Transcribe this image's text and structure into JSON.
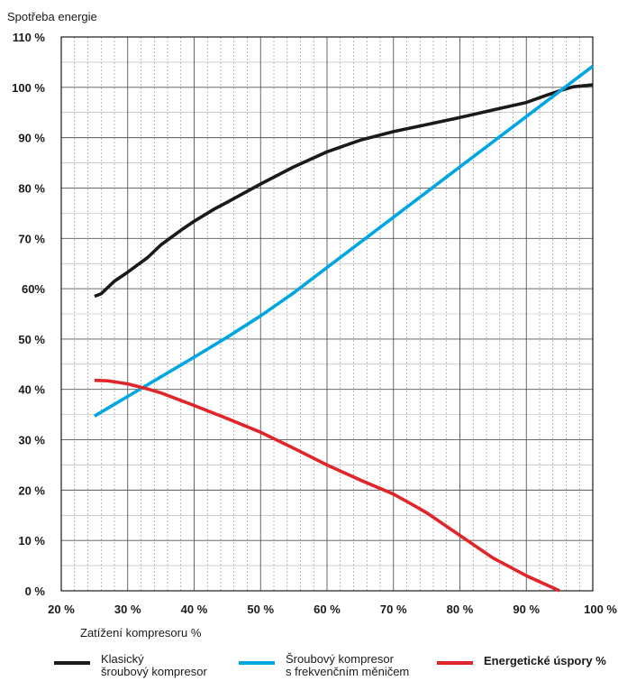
{
  "chart_data": {
    "type": "line",
    "ylabel": "Spotřeba energie",
    "xlabel": "Zatížení kompresoru %",
    "xlim": [
      20,
      100
    ],
    "ylim": [
      0,
      110
    ],
    "x_ticks": [
      "20 %",
      "30 %",
      "40 %",
      "50 %",
      "60 %",
      "70 %",
      "80 %",
      "90 %",
      "100 %"
    ],
    "y_ticks": [
      "0 %",
      "10 %",
      "20 %",
      "30 %",
      "40 %",
      "50 %",
      "60%",
      "70 %",
      "80 %",
      "90 %",
      "100 %",
      "110 %"
    ],
    "grid": true,
    "legend_position": "bottom",
    "series": [
      {
        "name": "Klasický\nšroubový kompresor",
        "color": "#1a1a1a",
        "bold": false,
        "x": [
          25,
          26,
          28,
          30,
          33,
          35,
          38,
          40,
          43,
          45,
          50,
          55,
          60,
          65,
          70,
          75,
          80,
          85,
          90,
          93,
          95,
          97,
          100
        ],
        "y": [
          58.5,
          59,
          61.5,
          63.3,
          66.2,
          68.7,
          71.6,
          73.4,
          75.8,
          77.2,
          80.8,
          84.2,
          87.2,
          89.5,
          91.2,
          92.6,
          94,
          95.5,
          97,
          98.4,
          99.3,
          100.1,
          100.5
        ]
      },
      {
        "name": "Šroubový kompresor\ns frekvenčním měničem",
        "color": "#00a6e2",
        "bold": false,
        "x": [
          25,
          30,
          35,
          40,
          45,
          50,
          55,
          60,
          65,
          70,
          75,
          80,
          85,
          90,
          95,
          100
        ],
        "y": [
          34.7,
          38.6,
          42.5,
          46.4,
          50.4,
          54.6,
          59.2,
          64.2,
          69.2,
          74.2,
          79.2,
          84.2,
          89.2,
          94.2,
          99.2,
          104.2
        ]
      },
      {
        "name": "Energetické úspory %",
        "color": "#e0262b",
        "bold": true,
        "x": [
          25,
          27,
          30,
          33,
          35,
          40,
          45,
          50,
          55,
          60,
          65,
          70,
          73,
          75,
          80,
          85,
          90,
          93,
          95
        ],
        "y": [
          41.8,
          41.7,
          41.1,
          40.1,
          39.3,
          36.8,
          34.2,
          31.5,
          28.3,
          25,
          22,
          19.2,
          17,
          15.5,
          11,
          6.5,
          3,
          1.2,
          0
        ]
      }
    ]
  }
}
